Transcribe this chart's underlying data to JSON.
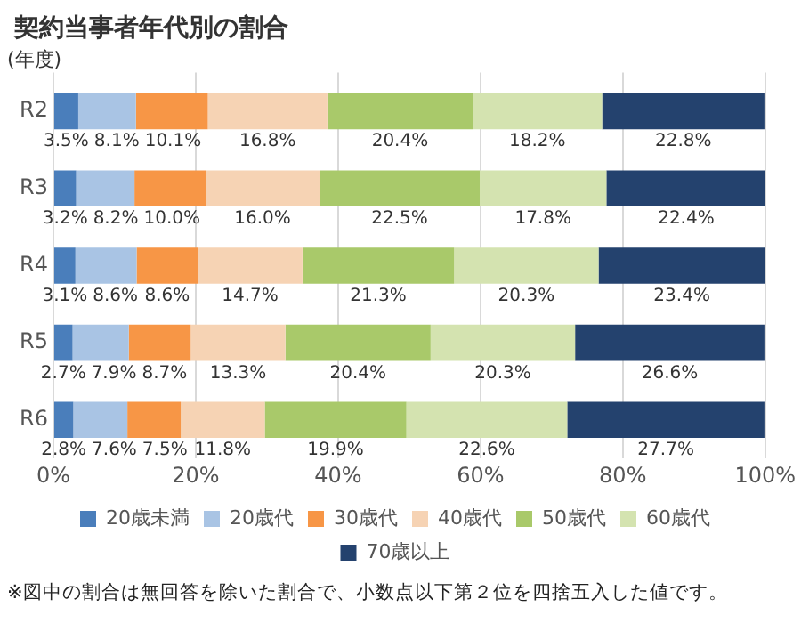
{
  "chart_data": {
    "type": "bar",
    "orientation": "horizontal",
    "stacked": true,
    "title": "契約当事者年代別の割合",
    "ylabel": "(年度)",
    "categories": [
      "R2",
      "R3",
      "R4",
      "R5",
      "R6"
    ],
    "series": [
      {
        "name": "20歳未満",
        "color": "#4a7ebb",
        "values": [
          3.5,
          3.2,
          3.1,
          2.7,
          2.8
        ],
        "value_labels": [
          "3.5%",
          "3.2%",
          "3.1%",
          "2.7%",
          "2.8%"
        ]
      },
      {
        "name": "20歳代",
        "color": "#a9c4e4",
        "values": [
          8.1,
          8.2,
          8.6,
          7.9,
          7.6
        ],
        "value_labels": [
          "8.1%",
          "8.2%",
          "8.6%",
          "7.9%",
          "7.6%"
        ]
      },
      {
        "name": "30歳代",
        "color": "#f79646",
        "values": [
          10.1,
          10.0,
          8.6,
          8.7,
          7.5
        ],
        "value_labels": [
          "10.1%",
          "10.0%",
          "8.6%",
          "8.7%",
          "7.5%"
        ]
      },
      {
        "name": "40歳代",
        "color": "#f6d3b4",
        "values": [
          16.8,
          16.0,
          14.7,
          13.3,
          11.8
        ],
        "value_labels": [
          "16.8%",
          "16.0%",
          "14.7%",
          "13.3%",
          "11.8%"
        ]
      },
      {
        "name": "50歳代",
        "color": "#a9c96a",
        "values": [
          20.4,
          22.5,
          21.3,
          20.4,
          19.9
        ],
        "value_labels": [
          "20.4%",
          "22.5%",
          "21.3%",
          "20.4%",
          "19.9%"
        ]
      },
      {
        "name": "60歳代",
        "color": "#d4e3b0",
        "values": [
          18.2,
          17.8,
          20.3,
          20.3,
          22.6
        ],
        "value_labels": [
          "18.2%",
          "17.8%",
          "20.3%",
          "20.3%",
          "22.6%"
        ]
      },
      {
        "name": "70歳以上",
        "color": "#24426e",
        "values": [
          22.8,
          22.4,
          23.4,
          26.6,
          27.7
        ],
        "value_labels": [
          "22.8%",
          "22.4%",
          "23.4%",
          "26.6%",
          "27.7%"
        ]
      }
    ],
    "xlim": [
      0,
      100
    ],
    "xticks": [
      {
        "value": 0,
        "label": "0%"
      },
      {
        "value": 20,
        "label": "20%"
      },
      {
        "value": 40,
        "label": "40%"
      },
      {
        "value": 60,
        "label": "60%"
      },
      {
        "value": 80,
        "label": "80%"
      },
      {
        "value": 100,
        "label": "100%"
      }
    ],
    "grid": "x",
    "legend": "bottom",
    "annotations": [
      "※図中の割合は無回答を除いた割合で、小数点以下第２位を四捨五入した値です。"
    ]
  }
}
